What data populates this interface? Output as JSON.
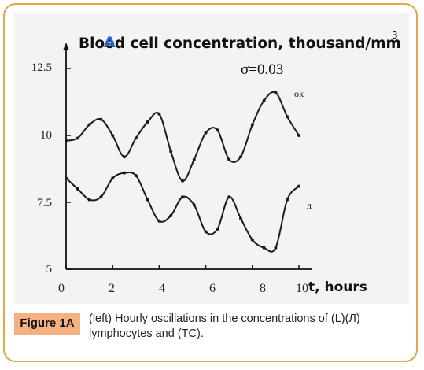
{
  "chart_data": {
    "type": "line",
    "title": "Blood cell concentration, thousand/mm",
    "title_superscript": "3",
    "xlabel": "t, hours",
    "xticks": [
      "0",
      "2",
      "4",
      "6",
      "8",
      "10"
    ],
    "yticks": [
      "5",
      "7.5",
      "10",
      "12.5"
    ],
    "xlim": [
      0,
      10
    ],
    "ylim": [
      5,
      12.5
    ],
    "grid": false,
    "annotation": "σ=0.03",
    "series": [
      {
        "name": "ок",
        "color": "#1a1a1a",
        "x": [
          0,
          0.5,
          1,
          1.5,
          2,
          2.5,
          3,
          3.5,
          4,
          4.5,
          5,
          5.5,
          6,
          6.5,
          7,
          7.5,
          8,
          8.5,
          9,
          9.5,
          10
        ],
        "y": [
          9.8,
          9.9,
          10.4,
          10.6,
          10.0,
          9.2,
          9.9,
          10.5,
          10.8,
          9.4,
          8.3,
          9.1,
          10.1,
          10.2,
          9.1,
          9.2,
          10.4,
          11.3,
          11.6,
          10.7,
          10.0
        ]
      },
      {
        "name": "л",
        "color": "#1a1a1a",
        "x": [
          0,
          0.5,
          1,
          1.5,
          2,
          2.5,
          3,
          3.5,
          4,
          4.5,
          5,
          5.5,
          6,
          6.5,
          7,
          7.5,
          8,
          8.5,
          9,
          9.5,
          10
        ],
        "y": [
          8.4,
          8.0,
          7.6,
          7.7,
          8.4,
          8.6,
          8.5,
          7.6,
          6.8,
          7.0,
          7.7,
          7.4,
          6.4,
          6.5,
          7.7,
          6.9,
          6.1,
          5.8,
          5.8,
          7.6,
          8.1
        ]
      }
    ]
  },
  "caption": {
    "label": "Figure 1A",
    "text": "(left) Hourly oscillations in the concentrations of (L)(Л) lymphocytes and (TC)."
  }
}
